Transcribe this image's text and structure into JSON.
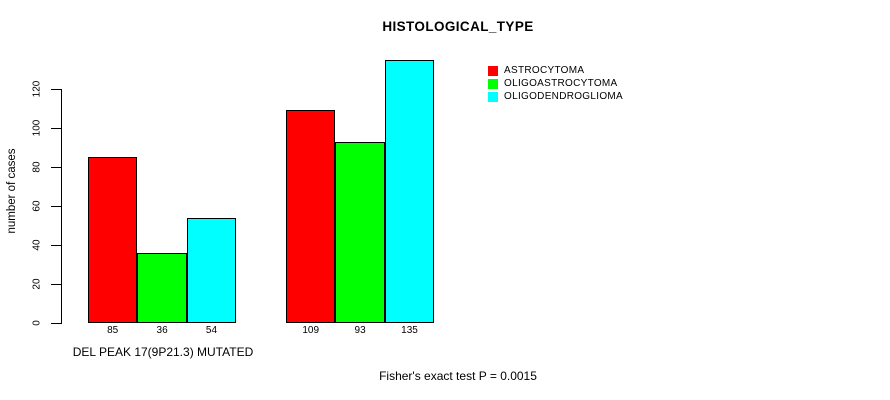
{
  "chart_data": {
    "type": "bar",
    "title": "HISTOLOGICAL_TYPE",
    "ylabel": "number of cases",
    "xlabel": "",
    "ylim": [
      0,
      135
    ],
    "yticks": [
      0,
      20,
      40,
      60,
      80,
      100,
      120
    ],
    "grid": false,
    "legend_position": "top-right",
    "categories": [
      "DEL PEAK 17(9P21.3) MUTATED",
      ""
    ],
    "series": [
      {
        "name": "ASTROCYTOMA",
        "color": "#ff0000",
        "values": [
          85,
          109
        ]
      },
      {
        "name": "OLIGOASTROCYTOMA",
        "color": "#00ff00",
        "values": [
          36,
          93
        ]
      },
      {
        "name": "OLIGODENDROGLIOMA",
        "color": "#00ffff",
        "values": [
          54,
          135
        ]
      }
    ],
    "bar_value_labels": [
      [
        85,
        36,
        54
      ],
      [
        109,
        93,
        135
      ]
    ],
    "annotation": "Fisher's exact test P = 0.0015"
  }
}
